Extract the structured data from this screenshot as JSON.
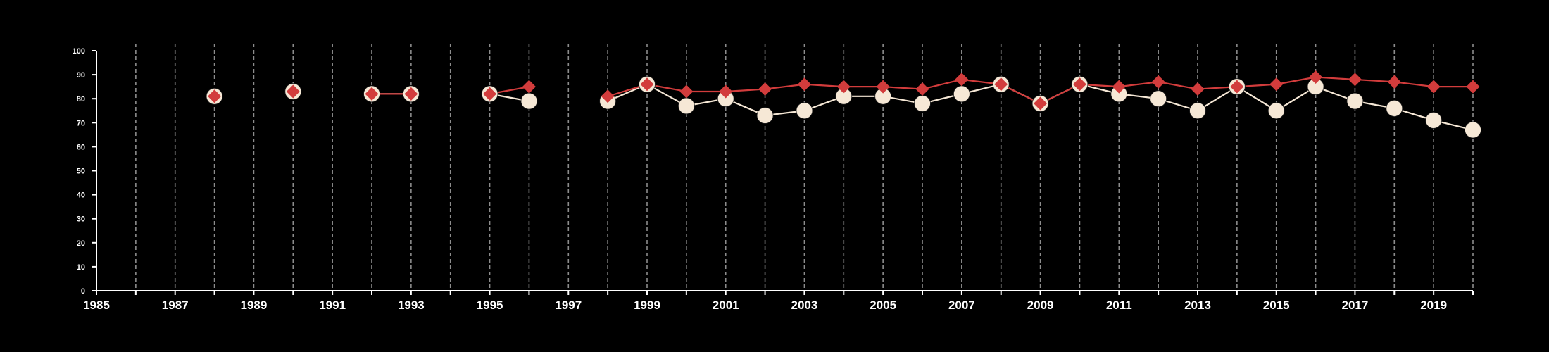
{
  "chart_data": {
    "type": "line",
    "title": "",
    "xlabel": "",
    "ylabel": "",
    "xlim": [
      1985,
      2020
    ],
    "ylim": [
      0,
      100
    ],
    "x_tick_labels": [
      "1985",
      "1987",
      "1989",
      "1991",
      "1993",
      "1995",
      "1997",
      "1999",
      "2001",
      "2003",
      "2005",
      "2007",
      "2009",
      "2011",
      "2013",
      "2015",
      "2017",
      "2019"
    ],
    "y_tick_labels": [
      "0",
      "10",
      "20",
      "30",
      "40",
      "50",
      "60",
      "70",
      "80",
      "90",
      "100"
    ],
    "grid": "vertical dashed lines at each year",
    "legend": "none",
    "colors": {
      "background": "#000000",
      "axis": "#ffffff",
      "grid": "#8c8c8c",
      "series_red": "#d23c3c",
      "series_cream": "#f6e8d6"
    },
    "series": [
      {
        "marker": "circle",
        "color": "#f6e8d6",
        "points": [
          {
            "x": 1988,
            "y": 81
          },
          {
            "x": 1990,
            "y": 83
          },
          {
            "x": 1992,
            "y": 82
          },
          {
            "x": 1993,
            "y": 82
          },
          {
            "x": 1995,
            "y": 82
          },
          {
            "x": 1996,
            "y": 79
          },
          {
            "x": 1998,
            "y": 79
          },
          {
            "x": 1999,
            "y": 86
          },
          {
            "x": 2000,
            "y": 77
          },
          {
            "x": 2001,
            "y": 80
          },
          {
            "x": 2002,
            "y": 73
          },
          {
            "x": 2003,
            "y": 75
          },
          {
            "x": 2004,
            "y": 81
          },
          {
            "x": 2005,
            "y": 81
          },
          {
            "x": 2006,
            "y": 78
          },
          {
            "x": 2007,
            "y": 82
          },
          {
            "x": 2008,
            "y": 86
          },
          {
            "x": 2009,
            "y": 78
          },
          {
            "x": 2010,
            "y": 86
          },
          {
            "x": 2011,
            "y": 82
          },
          {
            "x": 2012,
            "y": 80
          },
          {
            "x": 2013,
            "y": 75
          },
          {
            "x": 2014,
            "y": 85
          },
          {
            "x": 2015,
            "y": 75
          },
          {
            "x": 2016,
            "y": 85
          },
          {
            "x": 2017,
            "y": 79
          },
          {
            "x": 2018,
            "y": 76
          },
          {
            "x": 2019,
            "y": 71
          },
          {
            "x": 2020,
            "y": 67
          }
        ]
      },
      {
        "marker": "diamond",
        "color": "#d23c3c",
        "points": [
          {
            "x": 1988,
            "y": 81
          },
          {
            "x": 1990,
            "y": 83
          },
          {
            "x": 1992,
            "y": 82
          },
          {
            "x": 1993,
            "y": 82
          },
          {
            "x": 1995,
            "y": 82
          },
          {
            "x": 1996,
            "y": 85
          },
          {
            "x": 1998,
            "y": 81
          },
          {
            "x": 1999,
            "y": 86
          },
          {
            "x": 2000,
            "y": 83
          },
          {
            "x": 2001,
            "y": 83
          },
          {
            "x": 2002,
            "y": 84
          },
          {
            "x": 2003,
            "y": 86
          },
          {
            "x": 2004,
            "y": 85
          },
          {
            "x": 2005,
            "y": 85
          },
          {
            "x": 2006,
            "y": 84
          },
          {
            "x": 2007,
            "y": 88
          },
          {
            "x": 2008,
            "y": 86
          },
          {
            "x": 2009,
            "y": 78
          },
          {
            "x": 2010,
            "y": 86
          },
          {
            "x": 2011,
            "y": 85
          },
          {
            "x": 2012,
            "y": 87
          },
          {
            "x": 2013,
            "y": 84
          },
          {
            "x": 2014,
            "y": 85
          },
          {
            "x": 2015,
            "y": 86
          },
          {
            "x": 2016,
            "y": 89
          },
          {
            "x": 2017,
            "y": 88
          },
          {
            "x": 2018,
            "y": 87
          },
          {
            "x": 2019,
            "y": 85
          },
          {
            "x": 2020,
            "y": 85
          }
        ]
      }
    ]
  }
}
